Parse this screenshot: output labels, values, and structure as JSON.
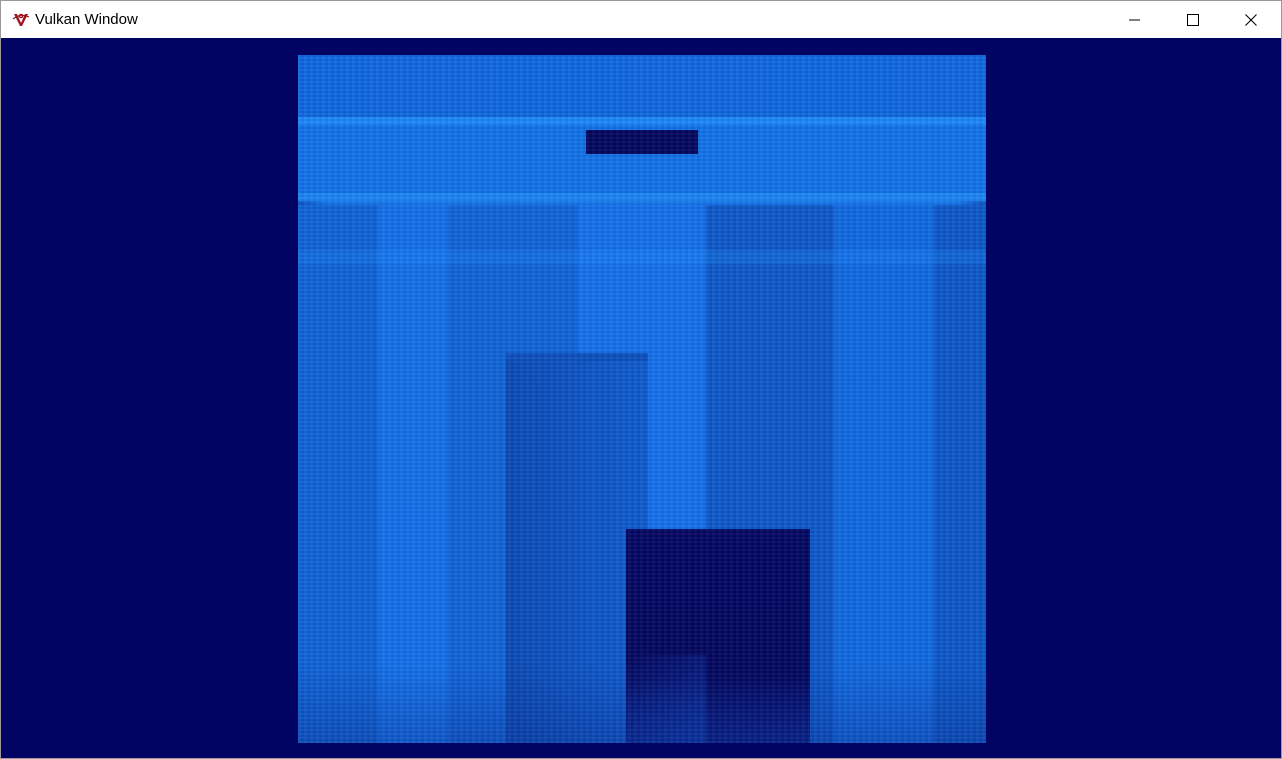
{
  "window": {
    "title": "Vulkan Window",
    "icon": "vulkan-logo-icon",
    "controls": {
      "minimize_icon": "minimize-icon",
      "maximize_icon": "maximize-icon",
      "close_icon": "close-icon"
    }
  },
  "scene": {
    "background_color": "#010463",
    "primary_color": "#0f6ce6",
    "shadow_color": "#02065e",
    "description_icon": "rendered-3d-scene"
  }
}
